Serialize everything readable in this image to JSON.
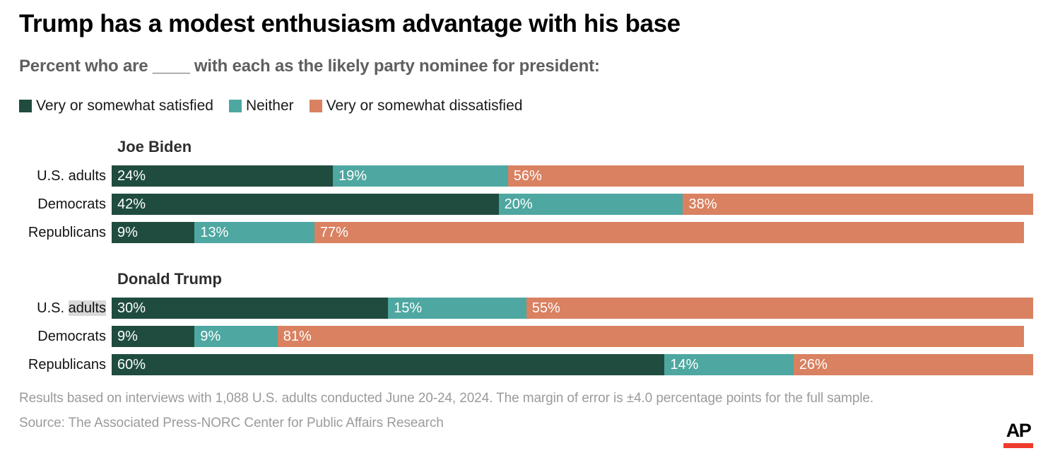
{
  "header": {
    "title": "Trump has a modest enthusiasm advantage with his base",
    "subtitle": "Percent who are ____ with each as the likely party nominee for president:"
  },
  "chart_data": {
    "type": "bar",
    "orientation": "horizontal",
    "stacked": true,
    "unit": "%",
    "xlim": [
      0,
      100
    ],
    "grid": false,
    "legend_position": "top",
    "series": [
      {
        "name": "Very or somewhat satisfied",
        "color": "#1f4c3f"
      },
      {
        "name": "Neither",
        "color": "#4ea7a1"
      },
      {
        "name": "Very or somewhat dissatisfied",
        "color": "#d98161"
      }
    ],
    "groups": [
      {
        "title": "Joe Biden",
        "rows": [
          {
            "label": "U.S. adults",
            "values": [
              24,
              19,
              56
            ]
          },
          {
            "label": "Democrats",
            "values": [
              42,
              20,
              38
            ]
          },
          {
            "label": "Republicans",
            "values": [
              9,
              13,
              77
            ]
          }
        ]
      },
      {
        "title": "Donald Trump",
        "rows": [
          {
            "label": "U.S. adults",
            "label_parts": [
              {
                "text": "U.S. "
              },
              {
                "text": "adults",
                "highlight": true
              }
            ],
            "values": [
              30,
              15,
              55
            ]
          },
          {
            "label": "Democrats",
            "values": [
              9,
              9,
              81
            ]
          },
          {
            "label": "Republicans",
            "values": [
              60,
              14,
              26
            ]
          }
        ]
      }
    ]
  },
  "footer": {
    "note": "Results based on interviews with 1,088 U.S. adults conducted June 20-24, 2024. The margin of error is ±4.0 percentage points for the full sample.",
    "source": "Source: The Associated Press-NORC Center for Public Affairs Research"
  },
  "logo": {
    "text": "AP",
    "underline_color": "#ee3a2c"
  }
}
